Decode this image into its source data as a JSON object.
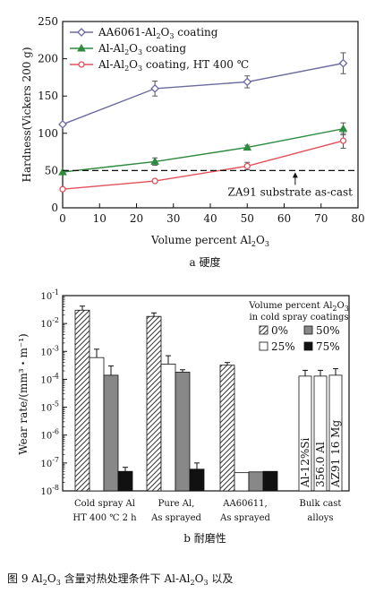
{
  "chart_data": [
    {
      "type": "line",
      "ylabel": "Hardness(Vickers 200 g)",
      "xlabel_prefix": "Volume percent Al",
      "xlabel_sub": "2",
      "xlabel_mid": "O",
      "xlabel_sub2": "3",
      "caption": "a  硬度",
      "xlim": [
        0,
        80
      ],
      "ylim": [
        0,
        250
      ],
      "xticks": [
        0,
        10,
        20,
        30,
        40,
        50,
        60,
        70,
        80
      ],
      "yticks": [
        0,
        50,
        100,
        150,
        200,
        250
      ],
      "grid": false,
      "legend_position": "top-left",
      "series": [
        {
          "name": "AA6061-Al2O3 coating",
          "legend": {
            "a": "AA6061-Al",
            "s1": "2",
            "b": "O",
            "s2": "3",
            "c": " coating"
          },
          "color": "#6b6ba0",
          "marker": "diamond",
          "x": [
            0,
            25,
            50,
            76
          ],
          "y": [
            112,
            160,
            169,
            194
          ],
          "err": [
            0,
            10,
            8,
            14
          ]
        },
        {
          "name": "Al-Al2O3 coating",
          "legend": {
            "a": "Al-Al",
            "s1": "2",
            "b": "O",
            "s2": "3",
            "c": " coating"
          },
          "color": "#2e8a3e",
          "marker": "triangle",
          "x": [
            0,
            25,
            50,
            76
          ],
          "y": [
            48,
            62,
            81,
            106
          ],
          "err": [
            0,
            5,
            3,
            8
          ]
        },
        {
          "name": "Al-Al2O3 coating, HT 400 ℃",
          "legend": {
            "a": "Al-Al",
            "s1": "2",
            "b": "O",
            "s2": "3",
            "c": " coating, HT 400 ℃"
          },
          "color": "#e0525a",
          "marker": "circle",
          "x": [
            0,
            25,
            50,
            76
          ],
          "y": [
            25,
            36,
            56,
            90
          ],
          "err": [
            0,
            2,
            5,
            10
          ]
        }
      ],
      "reference_line": {
        "label": "ZA91 substrate as-cast",
        "y": 50
      }
    },
    {
      "type": "bar",
      "ylabel": "Wear rate/(mm³・m⁻¹)",
      "yscale": "log",
      "ylim_exponents": [
        -8,
        -1
      ],
      "caption": "b  耐磨性",
      "categories": [
        {
          "line1": "Cold spray Al",
          "line2": "HT 400 ℃ 2 h"
        },
        {
          "line1": "Pure Al,",
          "line2": "As sprayed"
        },
        {
          "line1": "AA60611,",
          "line2": "As sprayed"
        },
        {
          "line1": "Bulk cast",
          "line2": "alloys"
        }
      ],
      "legend_title_1": "Volume percent Al2O3",
      "legend_title_1_parts": {
        "a": "Volume percent Al",
        "s1": "2",
        "b": "O",
        "s2": "3"
      },
      "legend_title_2": "in cold spray coatings",
      "legend_position": "top-right",
      "series": [
        {
          "name": "0%",
          "fill": "hatch",
          "values": [
            0.03,
            0.018,
            0.00032,
            null
          ],
          "err_up": [
            0.012,
            0.006,
            8e-05,
            null
          ]
        },
        {
          "name": "25%",
          "fill": "white",
          "values": [
            0.0006,
            0.00035,
            4.5e-08,
            null
          ],
          "err_up": [
            0.0006,
            0.00035,
            0.0,
            null
          ]
        },
        {
          "name": "50%",
          "fill": "gray",
          "values": [
            0.00014,
            0.00018,
            4.8e-08,
            null
          ],
          "err_up": [
            0.00016,
            4e-05,
            0.0,
            null
          ]
        },
        {
          "name": "75%",
          "fill": "black",
          "values": [
            5e-08,
            6e-08,
            5e-08,
            null
          ],
          "err_up": [
            2e-08,
            4e-08,
            0.0,
            null
          ]
        }
      ],
      "bulk_alloys": [
        {
          "label": "Al-12%Si",
          "value": 0.00013,
          "err_up": 8e-05
        },
        {
          "label": "356.0 Al",
          "value": 0.00013,
          "err_up": 8e-05
        },
        {
          "label": "AZ91 16 Mg",
          "value": 0.00014,
          "err_up": 0.0001
        }
      ]
    }
  ],
  "figure_caption": {
    "prefix": "图 9    Al",
    "s1": "2",
    "mid": "O",
    "s2": "3",
    "rest": " 含量对热处理条件下 Al-Al",
    "s3": "2",
    "mid2": "O",
    "s4": "3",
    "end": " 以及"
  }
}
